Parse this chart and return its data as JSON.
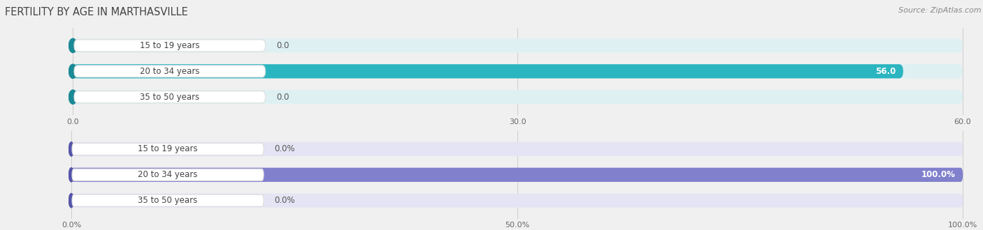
{
  "title": "FERTILITY BY AGE IN MARTHASVILLE",
  "source": "Source: ZipAtlas.com",
  "chart1": {
    "categories": [
      "15 to 19 years",
      "20 to 34 years",
      "35 to 50 years"
    ],
    "values": [
      0.0,
      56.0,
      0.0
    ],
    "xlim": [
      0,
      60.0
    ],
    "xticks": [
      0.0,
      30.0,
      60.0
    ],
    "xticklabels": [
      "0.0",
      "30.0",
      "60.0"
    ],
    "bar_color_main": "#2bb5c0",
    "bar_color_accent": "#1a8a96",
    "bar_bg_color": "#dff0f3",
    "value_labels": [
      "0.0",
      "56.0",
      "0.0"
    ]
  },
  "chart2": {
    "categories": [
      "15 to 19 years",
      "20 to 34 years",
      "35 to 50 years"
    ],
    "values": [
      0.0,
      100.0,
      0.0
    ],
    "xlim": [
      0,
      100.0
    ],
    "xticks": [
      0.0,
      50.0,
      100.0
    ],
    "xticklabels": [
      "0.0%",
      "50.0%",
      "100.0%"
    ],
    "bar_color_main": "#8080cc",
    "bar_color_accent": "#5555aa",
    "bar_bg_color": "#e4e4f4",
    "value_labels": [
      "0.0%",
      "100.0%",
      "0.0%"
    ]
  },
  "bg_color": "#f0f0f0",
  "label_bg": "#ffffff",
  "label_border": "#dddddd",
  "title_color": "#444444",
  "source_color": "#888888",
  "bar_height": 0.55,
  "label_fontsize": 8.5,
  "value_fontsize": 8.5,
  "tick_fontsize": 8,
  "title_fontsize": 10.5
}
